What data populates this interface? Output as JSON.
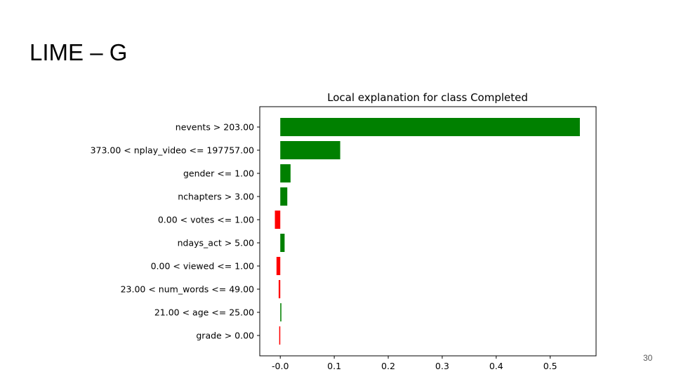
{
  "slide": {
    "title": "LIME – G",
    "page_number": "30"
  },
  "chart_data": {
    "type": "bar",
    "orientation": "horizontal",
    "title": "Local explanation for class Completed",
    "xlabel": "",
    "ylabel": "",
    "xlim": [
      -0.038,
      0.585
    ],
    "xticks": [
      "-0.0",
      "0.1",
      "0.2",
      "0.3",
      "0.4",
      "0.5"
    ],
    "categories": [
      "nevents > 203.00",
      "373.00 < nplay_video <= 197757.00",
      "gender <= 1.00",
      "nchapters > 3.00",
      "0.00 < votes <= 1.00",
      "ndays_act > 5.00",
      "0.00 < viewed <= 1.00",
      "23.00 < num_words <= 49.00",
      "21.00 < age <= 25.00",
      "grade > 0.00"
    ],
    "values": [
      0.555,
      0.111,
      0.019,
      0.013,
      -0.01,
      0.008,
      -0.007,
      -0.003,
      0.002,
      -0.002
    ],
    "colors": {
      "positive": "#008000",
      "negative": "#ff0000"
    },
    "grid": false,
    "legend": "none"
  }
}
